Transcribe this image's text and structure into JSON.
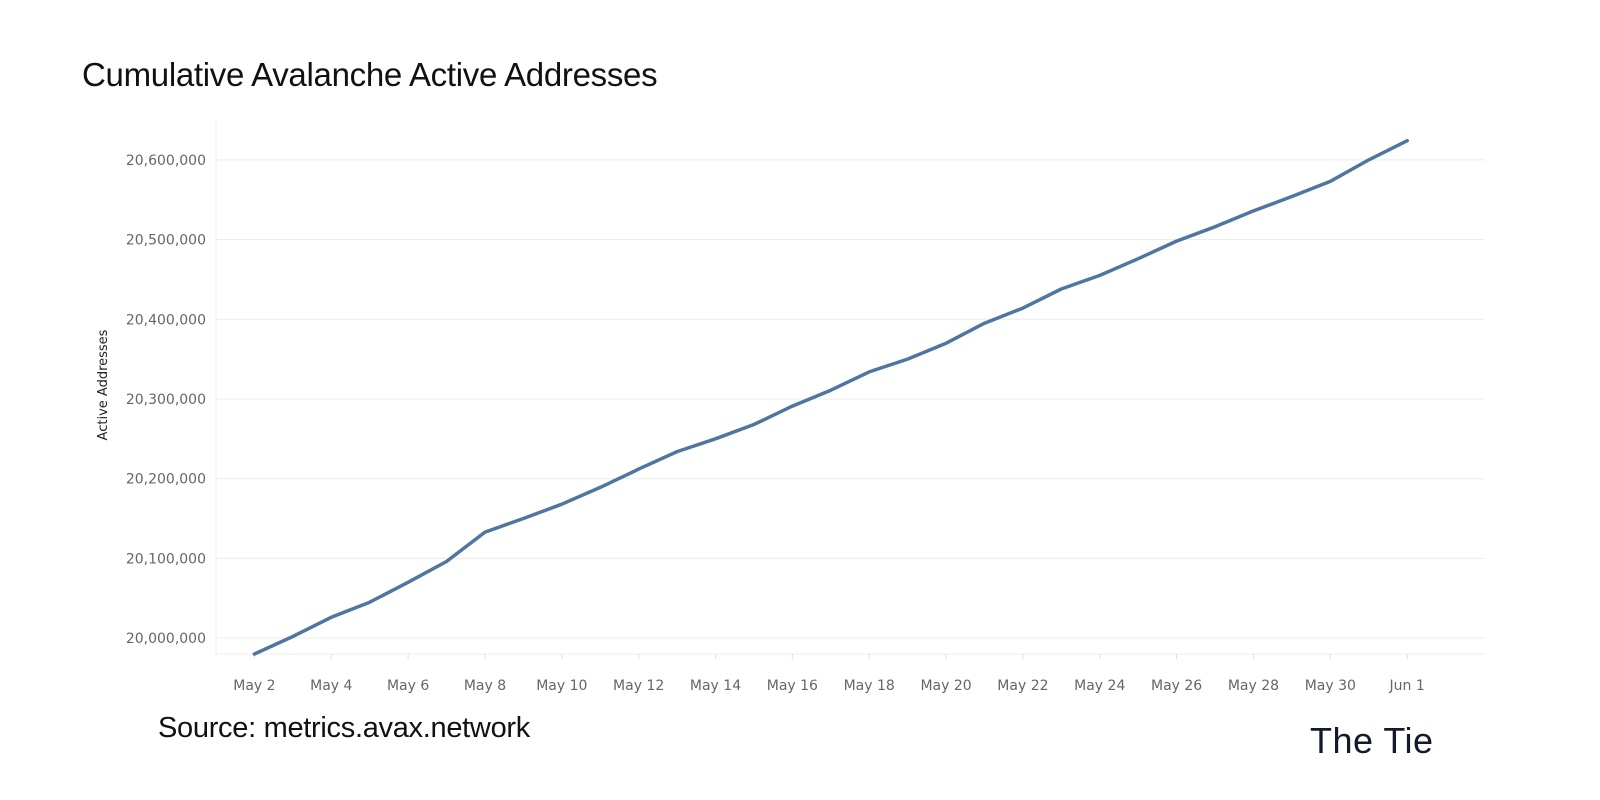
{
  "header": {
    "title": "Cumulative Avalanche Active Addresses"
  },
  "footer": {
    "source": "Source: metrics.avax.network",
    "logo_text": "The Tie"
  },
  "colors": {
    "line": "#4f76a0",
    "grid": "#ececec",
    "tick_text": "#666666"
  },
  "chart_data": {
    "type": "line",
    "title": "Cumulative Avalanche Active Addresses",
    "xlabel": "",
    "ylabel": "Active Addresses",
    "ylim": [
      19980000,
      20650000
    ],
    "yticks": [
      20000000,
      20100000,
      20200000,
      20300000,
      20400000,
      20500000,
      20600000
    ],
    "ytick_labels": [
      "20,000,000",
      "20,100,000",
      "20,200,000",
      "20,300,000",
      "20,400,000",
      "20,500,000",
      "20,600,000"
    ],
    "xlim": [
      "2021-05-01",
      "2021-06-03"
    ],
    "xticks": [
      "2021-05-02",
      "2021-05-04",
      "2021-05-06",
      "2021-05-08",
      "2021-05-10",
      "2021-05-12",
      "2021-05-14",
      "2021-05-16",
      "2021-05-18",
      "2021-05-20",
      "2021-05-22",
      "2021-05-24",
      "2021-05-26",
      "2021-05-28",
      "2021-05-30",
      "2021-06-01"
    ],
    "xtick_labels": [
      "May 2",
      "May 4",
      "May 6",
      "May 8",
      "May 10",
      "May 12",
      "May 14",
      "May 16",
      "May 18",
      "May 20",
      "May 22",
      "May 24",
      "May 26",
      "May 28",
      "May 30",
      "Jun 1"
    ],
    "grid": true,
    "series": [
      {
        "x": [
          "2021-05-02",
          "2021-05-03",
          "2021-05-04",
          "2021-05-05",
          "2021-05-06",
          "2021-05-07",
          "2021-05-08",
          "2021-05-09",
          "2021-05-10",
          "2021-05-11",
          "2021-05-12",
          "2021-05-13",
          "2021-05-14",
          "2021-05-15",
          "2021-05-16",
          "2021-05-17",
          "2021-05-18",
          "2021-05-19",
          "2021-05-20",
          "2021-05-21",
          "2021-05-22",
          "2021-05-23",
          "2021-05-24",
          "2021-05-25",
          "2021-05-26",
          "2021-05-27",
          "2021-05-28",
          "2021-05-29",
          "2021-05-30",
          "2021-05-31",
          "2021-06-01"
        ],
        "values": [
          19980000,
          20002000,
          20026000,
          20045000,
          20070000,
          20096000,
          20133000,
          20150000,
          20168000,
          20189000,
          20212000,
          20234000,
          20250000,
          20268000,
          20291000,
          20311000,
          20334000,
          20350000,
          20370000,
          20395000,
          20414000,
          20438000,
          20455000,
          20476000,
          20498000,
          20516000,
          20536000,
          20554000,
          20573000,
          20600000,
          20624000
        ]
      }
    ]
  }
}
